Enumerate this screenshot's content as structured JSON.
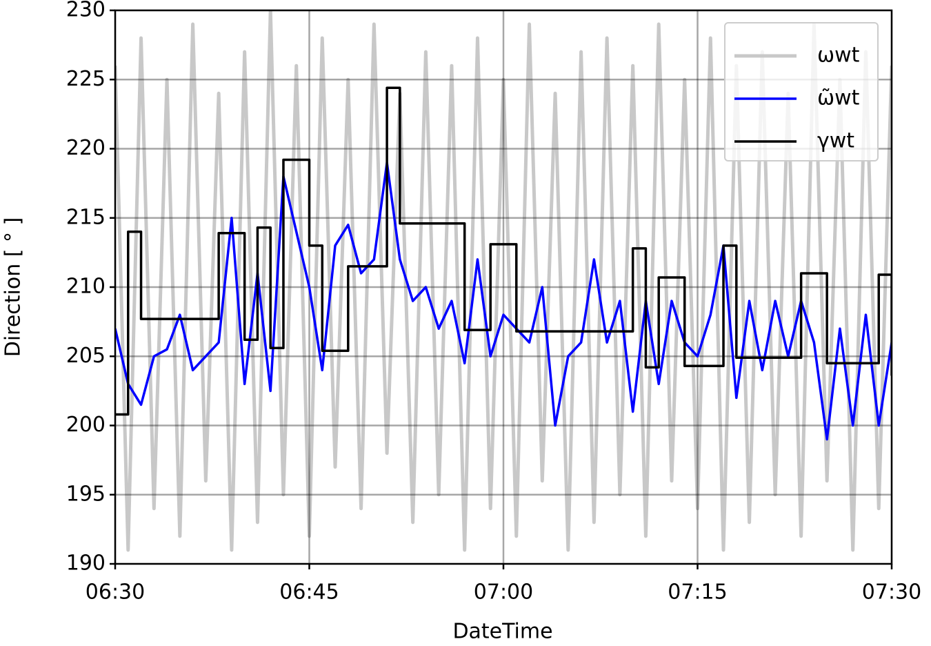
{
  "chart_data": {
    "type": "line",
    "xlabel": "DateTime",
    "ylabel": "Direction [ ° ]",
    "x": [
      "06:30",
      "06:31",
      "06:32",
      "06:33",
      "06:34",
      "06:35",
      "06:36",
      "06:37",
      "06:38",
      "06:39",
      "06:40",
      "06:41",
      "06:42",
      "06:43",
      "06:44",
      "06:45",
      "06:46",
      "06:47",
      "06:48",
      "06:49",
      "06:50",
      "06:51",
      "06:52",
      "06:53",
      "06:54",
      "06:55",
      "06:56",
      "06:57",
      "06:58",
      "06:59",
      "07:00",
      "07:01",
      "07:02",
      "07:03",
      "07:04",
      "07:05",
      "07:06",
      "07:07",
      "07:08",
      "07:09",
      "07:10",
      "07:11",
      "07:12",
      "07:13",
      "07:14",
      "07:15",
      "07:16",
      "07:17",
      "07:18",
      "07:19",
      "07:20",
      "07:21",
      "07:22",
      "07:23",
      "07:24",
      "07:25",
      "07:26",
      "07:27",
      "07:28",
      "07:29",
      "07:30"
    ],
    "series": [
      {
        "name": "ωwt",
        "color": "#c8c8c8",
        "width": 5,
        "values": [
          226,
          191,
          228,
          194,
          225,
          192,
          229,
          196,
          224,
          191,
          227,
          193,
          230,
          195,
          226,
          192,
          228,
          197,
          225,
          194,
          229,
          198,
          224,
          193,
          227,
          195,
          226,
          191,
          228,
          194,
          225,
          192,
          229,
          196,
          224,
          191,
          227,
          193,
          228,
          195,
          226,
          192,
          229,
          196,
          225,
          194,
          228,
          191,
          226,
          193,
          227,
          195,
          224,
          192,
          229,
          196,
          225,
          191,
          227,
          194,
          226
        ]
      },
      {
        "name": "ω̃wt",
        "color": "#0000ff",
        "width": 3.5,
        "values": [
          207,
          203,
          201.5,
          205,
          205.5,
          208,
          204,
          205,
          206,
          215,
          203,
          211,
          202.5,
          218,
          214,
          210,
          204,
          213,
          214.5,
          211,
          212,
          219,
          212,
          209,
          210,
          207,
          209,
          204.5,
          212,
          205,
          208,
          207,
          206,
          210,
          200,
          205,
          206,
          212,
          206,
          209,
          201,
          209,
          203,
          209,
          206,
          205,
          208,
          213,
          202,
          209,
          204,
          209,
          205,
          209,
          206,
          199,
          207,
          200,
          208,
          200,
          206
        ]
      },
      {
        "name": "γwt",
        "color": "#000000",
        "width": 3.5,
        "drawstyle": "steps-post",
        "values": [
          200.8,
          214,
          207.7,
          207.7,
          207.7,
          207.7,
          207.7,
          207.7,
          213.9,
          213.9,
          206.2,
          214.3,
          205.6,
          219.2,
          219.2,
          213,
          205.4,
          205.4,
          211.5,
          211.5,
          211.5,
          224.4,
          214.6,
          214.6,
          214.6,
          214.6,
          214.6,
          206.9,
          206.9,
          213.1,
          213.1,
          206.8,
          206.8,
          206.8,
          206.8,
          206.8,
          206.8,
          206.8,
          206.8,
          206.8,
          212.8,
          204.2,
          210.7,
          210.7,
          204.3,
          204.3,
          204.3,
          213,
          204.9,
          204.9,
          204.9,
          204.9,
          204.9,
          211,
          211,
          204.5,
          204.5,
          204.5,
          204.5,
          210.9,
          203.6
        ]
      }
    ],
    "xlim": [
      "06:30",
      "07:30"
    ],
    "xticks": [
      "06:30",
      "06:45",
      "07:00",
      "07:15",
      "07:30"
    ],
    "ylim": [
      190,
      230
    ],
    "yticks": [
      190,
      195,
      200,
      205,
      210,
      215,
      220,
      225,
      230
    ],
    "grid": true,
    "legend": "upper right"
  }
}
